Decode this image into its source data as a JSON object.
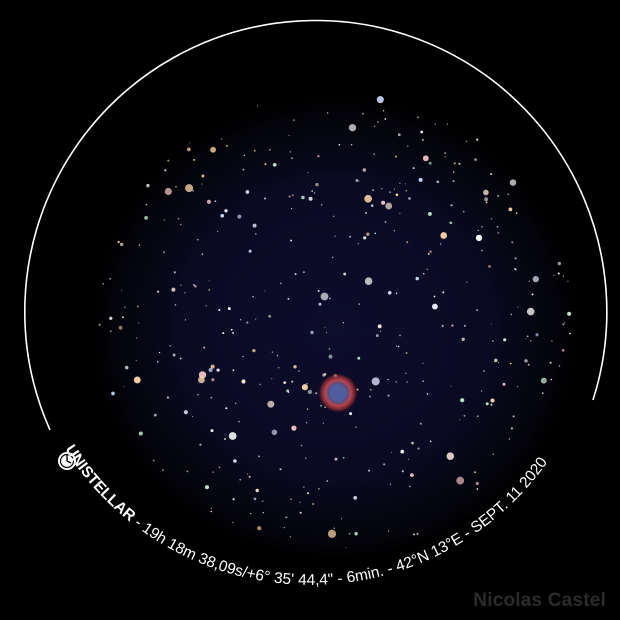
{
  "caption": {
    "brand": "UNISTELLAR",
    "details": " - 19h 18m 38,09s/+6° 35' 44,4\" - 6min. - 42°N 13°E - SEPT. 11 2020"
  },
  "credit": "Nicolas Castel",
  "colors": {
    "background": "#000000",
    "ring": "#ffffff",
    "sky": "#0a0a22",
    "nebula_outer": "#c0404a",
    "nebula_inner": "#3a4a8a",
    "credit_text": "#2b2b2b"
  },
  "icons": [
    "unistellar-logo-icon"
  ]
}
